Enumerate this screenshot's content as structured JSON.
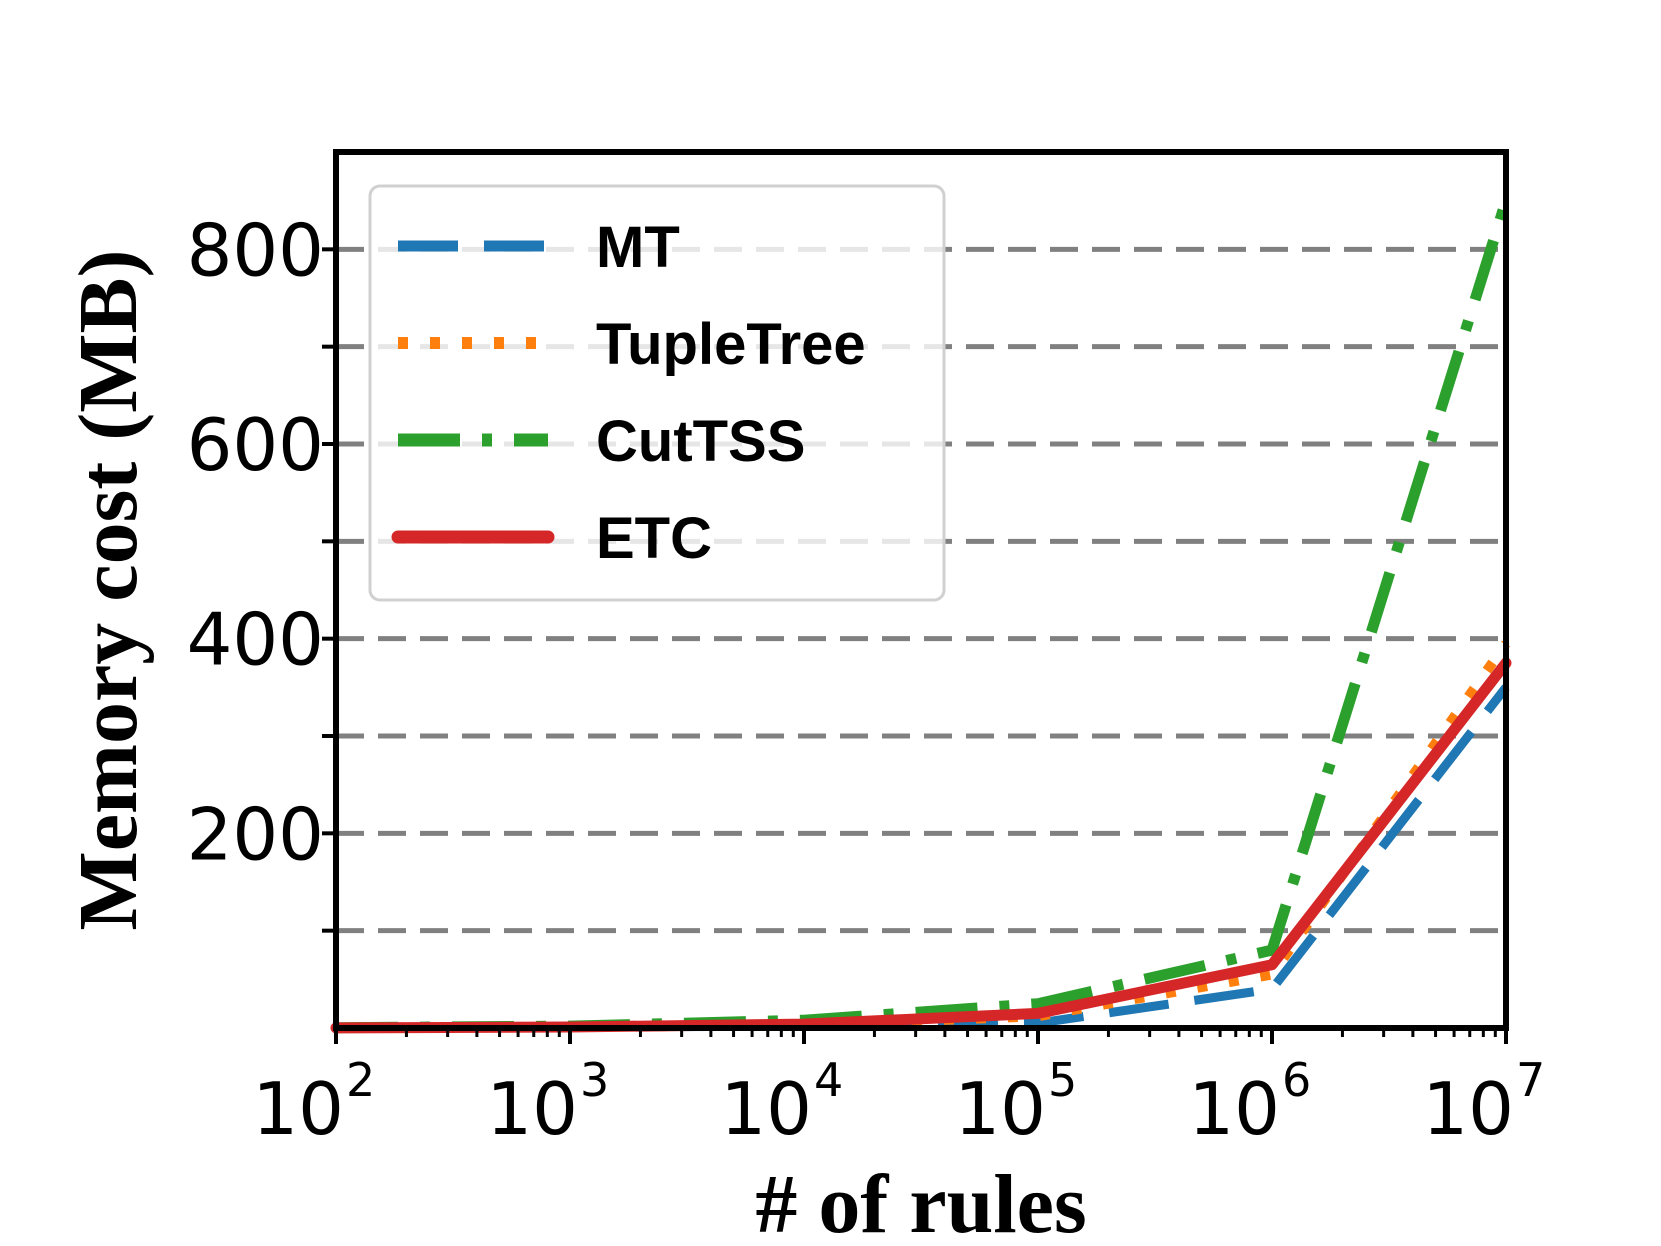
{
  "chart_data": {
    "type": "line",
    "xlabel": "# of rules",
    "ylabel": "Memory cost (MB)",
    "xscale": "log",
    "x": [
      100,
      1000,
      10000,
      100000,
      1000000,
      10000000
    ],
    "xtick_bases": [
      "10",
      "10",
      "10",
      "10",
      "10",
      "10"
    ],
    "xtick_exponents": [
      "2",
      "3",
      "4",
      "5",
      "6",
      "7"
    ],
    "ylim": [
      0,
      900
    ],
    "yticks": [
      200,
      400,
      600,
      800
    ],
    "ytick_labels": [
      "200",
      "400",
      "600",
      "800"
    ],
    "grid_lines": [
      100,
      200,
      300,
      400,
      500,
      600,
      700,
      800
    ],
    "grid": true,
    "legend_position": "top-left",
    "series": [
      {
        "name": "MT",
        "color": "#1f77b4",
        "style": "dashed",
        "values": [
          0.1,
          0.8,
          2,
          5,
          40,
          350
        ]
      },
      {
        "name": "TupleTree",
        "color": "#ff7f0e",
        "style": "dotted",
        "values": [
          0.1,
          1,
          3,
          12,
          55,
          395
        ]
      },
      {
        "name": "CutTSS",
        "color": "#2ca02c",
        "style": "dashdot",
        "values": [
          0.3,
          2,
          8,
          25,
          80,
          850
        ]
      },
      {
        "name": "ETC",
        "color": "#d62728",
        "style": "solid",
        "values": [
          0.1,
          1,
          4,
          15,
          65,
          375
        ]
      }
    ]
  }
}
